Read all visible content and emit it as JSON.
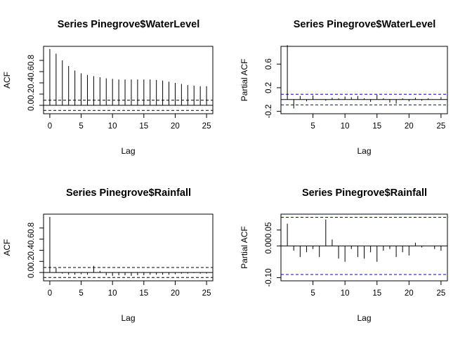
{
  "chart_data": [
    {
      "type": "acf",
      "title": "Series  Pinegrove$WaterLevel",
      "xlabel": "Lag",
      "ylabel": "ACF",
      "xlim": [
        -1,
        26
      ],
      "ylim": [
        -0.15,
        1.05
      ],
      "x_ticks": [
        0,
        5,
        10,
        15,
        20,
        25
      ],
      "y_ticks": [
        0.0,
        0.2,
        0.4,
        0.6,
        0.8
      ],
      "y_tick_labels": [
        "0.0",
        "0.2",
        "0.4",
        "0.6",
        "0.8"
      ],
      "lags": [
        0,
        1,
        2,
        3,
        4,
        5,
        6,
        7,
        8,
        9,
        10,
        11,
        12,
        13,
        14,
        15,
        16,
        17,
        18,
        19,
        20,
        21,
        22,
        23,
        24,
        25
      ],
      "values": [
        1.0,
        0.92,
        0.8,
        0.7,
        0.62,
        0.57,
        0.54,
        0.52,
        0.5,
        0.48,
        0.47,
        0.46,
        0.46,
        0.46,
        0.46,
        0.46,
        0.46,
        0.45,
        0.44,
        0.42,
        0.4,
        0.38,
        0.36,
        0.35,
        0.34,
        0.34
      ],
      "confidence_bound": 0.09,
      "grid": false
    },
    {
      "type": "pacf",
      "title": "Series  Pinegrove$WaterLevel",
      "xlabel": "Lag",
      "ylabel": "Partial ACF",
      "xlim": [
        0,
        26
      ],
      "ylim": [
        -0.24,
        0.9
      ],
      "x_ticks": [
        5,
        10,
        15,
        20,
        25
      ],
      "y_ticks": [
        -0.2,
        0.2,
        0.6
      ],
      "y_tick_labels": [
        "-0.2",
        "0.2",
        "0.6"
      ],
      "lags": [
        1,
        2,
        3,
        4,
        5,
        6,
        7,
        8,
        9,
        10,
        11,
        12,
        13,
        14,
        15,
        16,
        17,
        18,
        19,
        20,
        21,
        22,
        23,
        24,
        25
      ],
      "values": [
        0.92,
        -0.15,
        0.06,
        -0.03,
        0.07,
        0.0,
        -0.02,
        0.03,
        0.02,
        0.05,
        0.04,
        0.06,
        0.02,
        -0.04,
        0.08,
        0.02,
        -0.05,
        -0.07,
        0.02,
        -0.03,
        0.03,
        -0.02,
        0.02,
        0.0,
        0.04
      ],
      "confidence_bound": 0.09,
      "grid": false
    },
    {
      "type": "acf",
      "title": "Series  Pinegrove$Rainfall",
      "xlabel": "Lag",
      "ylabel": "ACF",
      "xlim": [
        -1,
        26
      ],
      "ylim": [
        -0.15,
        1.05
      ],
      "x_ticks": [
        0,
        5,
        10,
        15,
        20,
        25
      ],
      "y_ticks": [
        0.0,
        0.2,
        0.4,
        0.6,
        0.8
      ],
      "y_tick_labels": [
        "0.0",
        "0.2",
        "0.4",
        "0.6",
        "0.8"
      ],
      "lags": [
        0,
        1,
        2,
        3,
        4,
        5,
        6,
        7,
        8,
        9,
        10,
        11,
        12,
        13,
        14,
        15,
        16,
        17,
        18,
        19,
        20,
        21,
        22,
        23,
        24,
        25
      ],
      "values": [
        1.0,
        0.08,
        -0.02,
        -0.04,
        -0.04,
        -0.03,
        -0.04,
        0.12,
        0.03,
        -0.05,
        -0.06,
        -0.05,
        -0.05,
        -0.06,
        -0.05,
        -0.05,
        -0.04,
        -0.04,
        -0.04,
        -0.04,
        -0.03,
        -0.02,
        -0.02,
        -0.01,
        -0.02,
        -0.02
      ],
      "confidence_bound": 0.09,
      "grid": false
    },
    {
      "type": "pacf",
      "title": "Series  Pinegrove$Rainfall",
      "xlabel": "Lag",
      "ylabel": "Partial ACF",
      "xlim": [
        0,
        26
      ],
      "ylim": [
        -0.11,
        0.1
      ],
      "x_ticks": [
        5,
        10,
        15,
        20,
        25
      ],
      "y_ticks": [
        -0.1,
        0.0,
        0.05
      ],
      "y_tick_labels": [
        "-0.10",
        "0.00",
        "0.05"
      ],
      "lags": [
        1,
        2,
        3,
        4,
        5,
        6,
        7,
        8,
        9,
        10,
        11,
        12,
        13,
        14,
        15,
        16,
        17,
        18,
        19,
        20,
        21,
        22,
        23,
        24,
        25
      ],
      "values": [
        0.07,
        -0.015,
        -0.035,
        -0.02,
        -0.01,
        -0.035,
        0.083,
        0.02,
        -0.04,
        -0.05,
        -0.01,
        -0.035,
        -0.04,
        -0.02,
        -0.05,
        -0.015,
        -0.01,
        -0.035,
        -0.02,
        -0.03,
        0.01,
        -0.005,
        0.0,
        -0.01,
        -0.015
      ],
      "confidence_bound": 0.09,
      "grid": false
    }
  ],
  "colors": {
    "bar": "#000000",
    "axis": "#000000",
    "acf_bound": "#000000",
    "pacf_bound": "#0000cd",
    "zero_line": "#000000"
  }
}
